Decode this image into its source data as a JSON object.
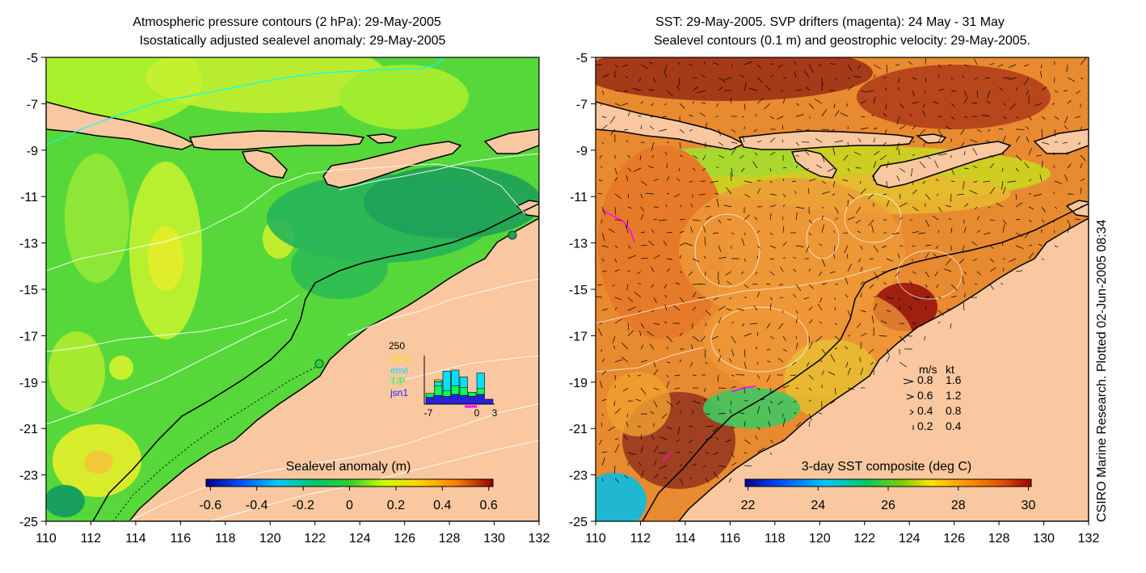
{
  "left_panel": {
    "title_line1": "Atmospheric pressure contours (2 hPa): 29-May-2005",
    "title_line2": "Isostatically adjusted sealevel anomaly: 29-May-2005",
    "colorbar_label": "Sealevel anomaly (m)",
    "colorbar_ticks": [
      "-0.6",
      "-0.4",
      "-0.2",
      "0",
      "0.2",
      "0.4",
      "0.6"
    ],
    "inset": {
      "ymax_label": "250",
      "legend": [
        {
          "name": "GFO",
          "color": "#ffd700"
        },
        {
          "name": "envi",
          "color": "#00e0ff"
        },
        {
          "name": "T/P",
          "color": "#00ff60"
        },
        {
          "name": "jsn1",
          "color": "#2020ff"
        }
      ],
      "x_labels": [
        "-7",
        "0",
        "3"
      ],
      "bars": [
        {
          "blue": 35,
          "green": 20,
          "cyan": 0,
          "yellow": 0
        },
        {
          "blue": 45,
          "green": 50,
          "cyan": 20,
          "yellow": 10
        },
        {
          "blue": 40,
          "green": 30,
          "cyan": 100,
          "yellow": 0
        },
        {
          "blue": 50,
          "green": 45,
          "cyan": 80,
          "yellow": 0
        },
        {
          "blue": 45,
          "green": 40,
          "cyan": 55,
          "yellow": 0
        },
        {
          "blue": 40,
          "green": 20,
          "cyan": 0,
          "yellow": 0
        },
        {
          "blue": 50,
          "green": 30,
          "cyan": 80,
          "yellow": 0
        },
        {
          "blue": 25,
          "green": 0,
          "cyan": 0,
          "yellow": 0
        }
      ]
    }
  },
  "right_panel": {
    "title_line1": "SST: 29-May-2005. SVP drifters (magenta): 24 May - 31 May",
    "title_line2": "Sealevel contours (0.1 m) and geostrophic velocity: 29-May-2005.",
    "colorbar_label": "3-day SST composite (deg C)",
    "colorbar_ticks": [
      "22",
      "24",
      "26",
      "28",
      "30"
    ],
    "speed_legend": {
      "header_ms": "m/s",
      "header_kt": "kt",
      "rows": [
        {
          "ms": "0.8",
          "kt": "1.6"
        },
        {
          "ms": "0.6",
          "kt": "1.2"
        },
        {
          "ms": "0.4",
          "kt": "0.8"
        },
        {
          "ms": "0.2",
          "kt": "0.4"
        }
      ]
    },
    "credit": "CSIRO Marine Research. Plotted 02-Jun-2005 08:34"
  },
  "axes": {
    "y_ticks": [
      "-5",
      "-7",
      "-9",
      "-11",
      "-13",
      "-15",
      "-17",
      "-19",
      "-21",
      "-23",
      "-25"
    ],
    "x_ticks": [
      "110",
      "112",
      "114",
      "116",
      "118",
      "120",
      "122",
      "124",
      "126",
      "128",
      "130",
      "132"
    ],
    "lon_range": [
      110,
      132
    ],
    "lat_range": [
      -25,
      -5
    ]
  },
  "colors": {
    "land": "#f9c8a0",
    "sla_colormap": [
      "#00008f",
      "#0050ff",
      "#00c8ff",
      "#00c864",
      "#32cd32",
      "#c8ff00",
      "#ffd000",
      "#ff8000",
      "#c80000",
      "#800000"
    ],
    "sst_colormap": [
      "#00008f",
      "#0050ff",
      "#00c8ff",
      "#00c864",
      "#7fd000",
      "#ffe000",
      "#ff9000",
      "#e05000",
      "#a00000"
    ]
  }
}
